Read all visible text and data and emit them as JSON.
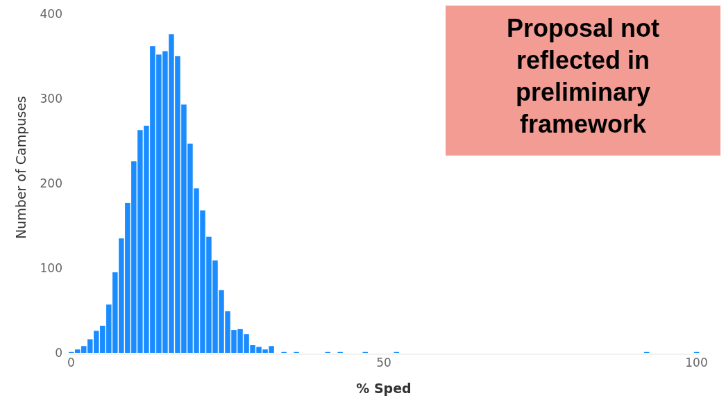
{
  "chart_data": {
    "type": "histogram",
    "xlabel": "% Sped",
    "ylabel": "Number of Campuses",
    "color": "#1a8cff",
    "bins": [
      -0.5,
      0.5,
      1.5,
      2.5,
      3.5,
      4.5,
      5.5,
      6.5,
      7.5,
      8.5,
      9.5,
      10.5,
      11.5,
      12.5,
      13.5,
      14.5,
      15.5,
      16.5,
      17.5,
      18.5,
      19.5,
      20.5,
      21.5,
      22.5,
      23.5,
      24.5,
      25.5,
      26.5,
      27.5,
      28.5,
      29.5,
      30.5,
      31.5,
      32.5,
      33.5,
      34.5,
      35.5,
      36.5,
      37.5,
      38.5,
      39.5,
      40.5,
      41.5,
      42.5,
      43.5,
      44.5,
      45.5,
      46.5,
      47.5,
      48.5,
      49.5,
      50.5,
      51.5,
      52.5,
      53.5,
      54.5,
      55.5,
      56.5,
      57.5,
      58.5,
      59.5,
      60.5,
      61.5,
      62.5,
      63.5,
      64.5,
      65.5,
      66.5,
      67.5,
      68.5,
      69.5,
      70.5,
      71.5,
      72.5,
      73.5,
      74.5,
      75.5,
      76.5,
      77.5,
      78.5,
      79.5,
      80.5,
      81.5,
      82.5,
      83.5,
      84.5,
      85.5,
      86.5,
      87.5,
      88.5,
      89.5,
      90.5,
      91.5,
      92.5,
      93.5,
      94.5,
      95.5,
      96.5,
      97.5,
      98.5,
      99.5,
      100.5
    ],
    "values": [
      1,
      4,
      8,
      16,
      26,
      32,
      57,
      95,
      135,
      177,
      226,
      263,
      268,
      362,
      352,
      356,
      376,
      350,
      293,
      247,
      194,
      168,
      137,
      109,
      74,
      49,
      27,
      28,
      22,
      9,
      7,
      4,
      8,
      0,
      1,
      0,
      1,
      0,
      0,
      0,
      0,
      1,
      0,
      1,
      0,
      0,
      0,
      1,
      0,
      0,
      0,
      0,
      1,
      0,
      0,
      0,
      0,
      0,
      0,
      0,
      0,
      0,
      0,
      0,
      0,
      0,
      0,
      0,
      0,
      0,
      0,
      0,
      0,
      0,
      0,
      0,
      0,
      0,
      0,
      0,
      0,
      0,
      0,
      0,
      0,
      0,
      0,
      0,
      0,
      0,
      0,
      0,
      1,
      0,
      0,
      0,
      0,
      0,
      0,
      0,
      1
    ],
    "xlim": [
      -0.5,
      100.5
    ],
    "xticks": [
      0,
      50,
      100
    ],
    "ylim": [
      0,
      400
    ],
    "yticks": [
      0,
      100,
      200,
      300,
      400
    ],
    "grid": false,
    "annotations": [
      "Proposal not reflected in preliminary framework"
    ]
  }
}
